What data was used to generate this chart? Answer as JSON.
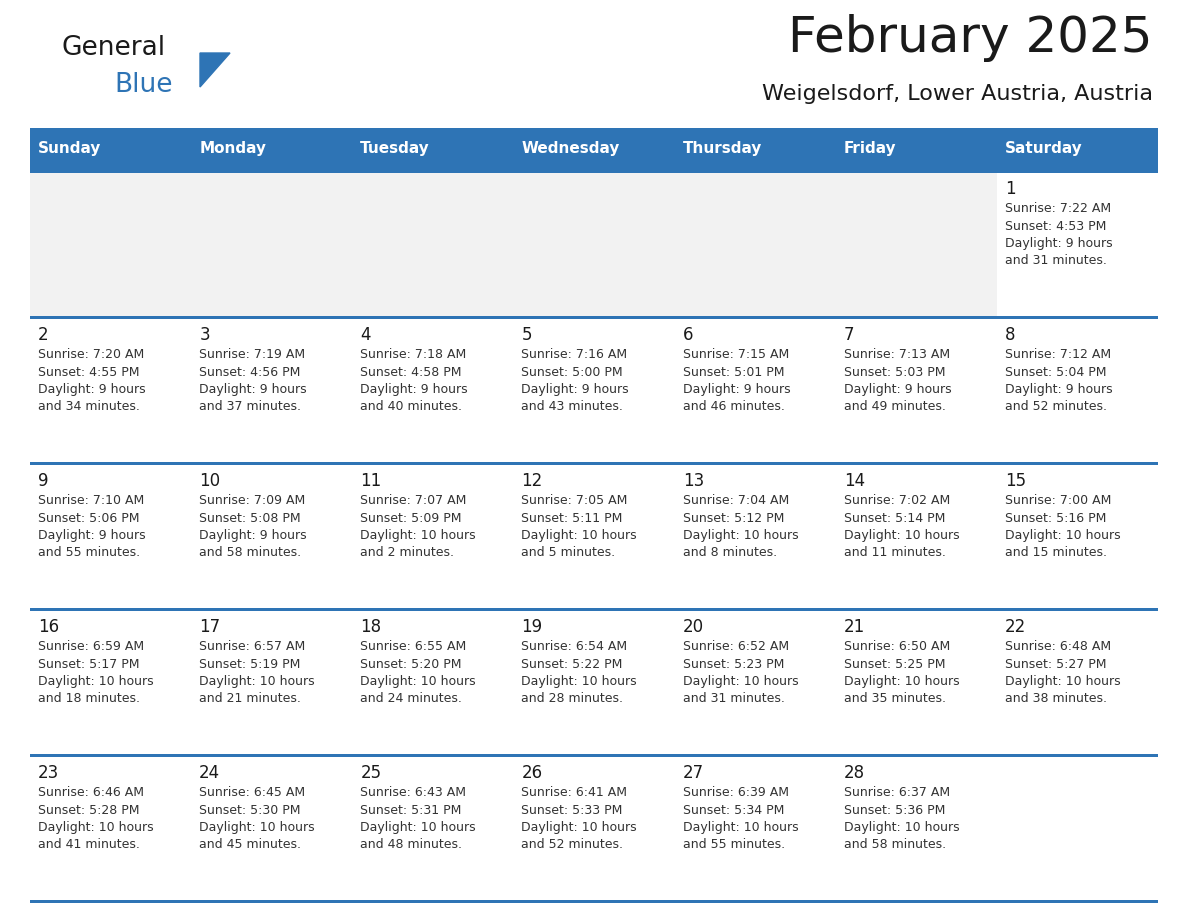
{
  "title": "February 2025",
  "subtitle": "Weigelsdorf, Lower Austria, Austria",
  "header_bg": "#2E74B5",
  "header_text_color": "#FFFFFF",
  "cell_bg": "#FFFFFF",
  "first_row_bg": "#F2F2F2",
  "separator_color": "#2E74B5",
  "text_color": "#333333",
  "day_num_color": "#1A1A1A",
  "days_of_week": [
    "Sunday",
    "Monday",
    "Tuesday",
    "Wednesday",
    "Thursday",
    "Friday",
    "Saturday"
  ],
  "calendar": [
    [
      null,
      null,
      null,
      null,
      null,
      null,
      {
        "day": "1",
        "sunrise": "7:22 AM",
        "sunset": "4:53 PM",
        "daylight": "9 hours",
        "daylight2": "and 31 minutes."
      }
    ],
    [
      {
        "day": "2",
        "sunrise": "7:20 AM",
        "sunset": "4:55 PM",
        "daylight": "9 hours",
        "daylight2": "and 34 minutes."
      },
      {
        "day": "3",
        "sunrise": "7:19 AM",
        "sunset": "4:56 PM",
        "daylight": "9 hours",
        "daylight2": "and 37 minutes."
      },
      {
        "day": "4",
        "sunrise": "7:18 AM",
        "sunset": "4:58 PM",
        "daylight": "9 hours",
        "daylight2": "and 40 minutes."
      },
      {
        "day": "5",
        "sunrise": "7:16 AM",
        "sunset": "5:00 PM",
        "daylight": "9 hours",
        "daylight2": "and 43 minutes."
      },
      {
        "day": "6",
        "sunrise": "7:15 AM",
        "sunset": "5:01 PM",
        "daylight": "9 hours",
        "daylight2": "and 46 minutes."
      },
      {
        "day": "7",
        "sunrise": "7:13 AM",
        "sunset": "5:03 PM",
        "daylight": "9 hours",
        "daylight2": "and 49 minutes."
      },
      {
        "day": "8",
        "sunrise": "7:12 AM",
        "sunset": "5:04 PM",
        "daylight": "9 hours",
        "daylight2": "and 52 minutes."
      }
    ],
    [
      {
        "day": "9",
        "sunrise": "7:10 AM",
        "sunset": "5:06 PM",
        "daylight": "9 hours",
        "daylight2": "and 55 minutes."
      },
      {
        "day": "10",
        "sunrise": "7:09 AM",
        "sunset": "5:08 PM",
        "daylight": "9 hours",
        "daylight2": "and 58 minutes."
      },
      {
        "day": "11",
        "sunrise": "7:07 AM",
        "sunset": "5:09 PM",
        "daylight": "10 hours",
        "daylight2": "and 2 minutes."
      },
      {
        "day": "12",
        "sunrise": "7:05 AM",
        "sunset": "5:11 PM",
        "daylight": "10 hours",
        "daylight2": "and 5 minutes."
      },
      {
        "day": "13",
        "sunrise": "7:04 AM",
        "sunset": "5:12 PM",
        "daylight": "10 hours",
        "daylight2": "and 8 minutes."
      },
      {
        "day": "14",
        "sunrise": "7:02 AM",
        "sunset": "5:14 PM",
        "daylight": "10 hours",
        "daylight2": "and 11 minutes."
      },
      {
        "day": "15",
        "sunrise": "7:00 AM",
        "sunset": "5:16 PM",
        "daylight": "10 hours",
        "daylight2": "and 15 minutes."
      }
    ],
    [
      {
        "day": "16",
        "sunrise": "6:59 AM",
        "sunset": "5:17 PM",
        "daylight": "10 hours",
        "daylight2": "and 18 minutes."
      },
      {
        "day": "17",
        "sunrise": "6:57 AM",
        "sunset": "5:19 PM",
        "daylight": "10 hours",
        "daylight2": "and 21 minutes."
      },
      {
        "day": "18",
        "sunrise": "6:55 AM",
        "sunset": "5:20 PM",
        "daylight": "10 hours",
        "daylight2": "and 24 minutes."
      },
      {
        "day": "19",
        "sunrise": "6:54 AM",
        "sunset": "5:22 PM",
        "daylight": "10 hours",
        "daylight2": "and 28 minutes."
      },
      {
        "day": "20",
        "sunrise": "6:52 AM",
        "sunset": "5:23 PM",
        "daylight": "10 hours",
        "daylight2": "and 31 minutes."
      },
      {
        "day": "21",
        "sunrise": "6:50 AM",
        "sunset": "5:25 PM",
        "daylight": "10 hours",
        "daylight2": "and 35 minutes."
      },
      {
        "day": "22",
        "sunrise": "6:48 AM",
        "sunset": "5:27 PM",
        "daylight": "10 hours",
        "daylight2": "and 38 minutes."
      }
    ],
    [
      {
        "day": "23",
        "sunrise": "6:46 AM",
        "sunset": "5:28 PM",
        "daylight": "10 hours",
        "daylight2": "and 41 minutes."
      },
      {
        "day": "24",
        "sunrise": "6:45 AM",
        "sunset": "5:30 PM",
        "daylight": "10 hours",
        "daylight2": "and 45 minutes."
      },
      {
        "day": "25",
        "sunrise": "6:43 AM",
        "sunset": "5:31 PM",
        "daylight": "10 hours",
        "daylight2": "and 48 minutes."
      },
      {
        "day": "26",
        "sunrise": "6:41 AM",
        "sunset": "5:33 PM",
        "daylight": "10 hours",
        "daylight2": "and 52 minutes."
      },
      {
        "day": "27",
        "sunrise": "6:39 AM",
        "sunset": "5:34 PM",
        "daylight": "10 hours",
        "daylight2": "and 55 minutes."
      },
      {
        "day": "28",
        "sunrise": "6:37 AM",
        "sunset": "5:36 PM",
        "daylight": "10 hours",
        "daylight2": "and 58 minutes."
      },
      null
    ]
  ],
  "logo_general_color": "#1A1A1A",
  "logo_blue_color": "#2E74B5",
  "fig_width": 11.88,
  "fig_height": 9.18,
  "dpi": 100
}
